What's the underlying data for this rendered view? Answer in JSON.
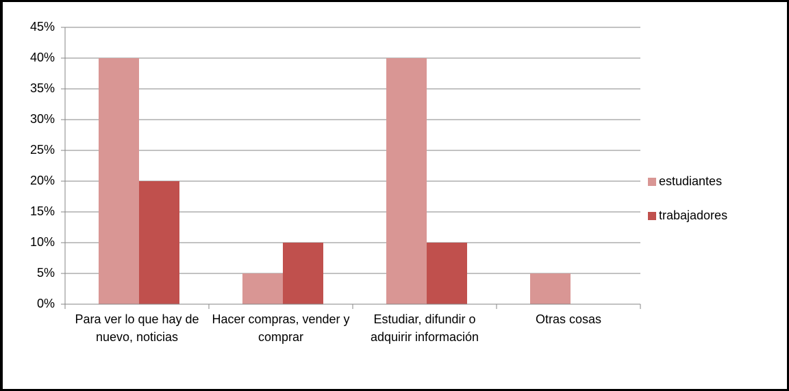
{
  "chart_data": {
    "type": "bar",
    "categories": [
      "Para ver lo que hay de nuevo, noticias",
      "Hacer compras, vender y comprar",
      "Estudiar, difundir o adquirir información",
      "Otras cosas"
    ],
    "series": [
      {
        "name": "estudiantes",
        "color": "#d99694",
        "values": [
          40,
          5,
          40,
          5
        ]
      },
      {
        "name": "trabajadores",
        "color": "#c0504d",
        "values": [
          20,
          10,
          10,
          0
        ]
      }
    ],
    "ylim": [
      0,
      45
    ],
    "yticks": [
      {
        "value": 0,
        "label": "0%"
      },
      {
        "value": 5,
        "label": "5%"
      },
      {
        "value": 10,
        "label": "10%"
      },
      {
        "value": 15,
        "label": "15%"
      },
      {
        "value": 20,
        "label": "20%"
      },
      {
        "value": 25,
        "label": "25%"
      },
      {
        "value": 30,
        "label": "30%"
      },
      {
        "value": 35,
        "label": "35%"
      },
      {
        "value": 40,
        "label": "40%"
      },
      {
        "value": 45,
        "label": "45%"
      }
    ],
    "grid": true,
    "legend": "right"
  }
}
